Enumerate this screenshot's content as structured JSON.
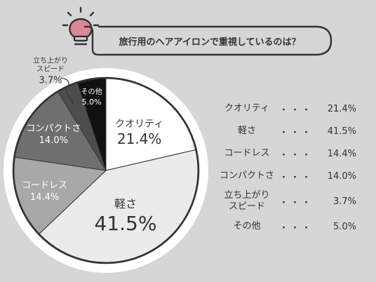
{
  "colors": {
    "background": "#d6d6d6",
    "ink": "#333333",
    "bulb_accent": "#d98a96"
  },
  "header": {
    "icon": "lightbulb-icon",
    "question": "旅行用のヘアアイロンで重視しているのは？"
  },
  "chart_data": {
    "type": "pie",
    "categories": [
      "クオリティ",
      "軽さ",
      "コードレス",
      "コンパクトさ",
      "立ち上がり\nスピード",
      "その他"
    ],
    "values": [
      21.4,
      41.5,
      14.4,
      14.0,
      3.7,
      5.0
    ],
    "value_labels": [
      "21.4%",
      "41.5%",
      "14.4%",
      "14.0%",
      "3.7%",
      "5.0%"
    ],
    "colors": [
      "#ffffff",
      "#ebebeb",
      "#a8a8a8",
      "#6f6f6f",
      "#4d4d4d",
      "#111111"
    ],
    "label_colors": [
      "#333333",
      "#333333",
      "#ffffff",
      "#ffffff",
      "#333333",
      "#ffffff"
    ],
    "start": "top, clockwise",
    "title": "",
    "legend": "right"
  },
  "table": {
    "dots": "・・・",
    "rows": [
      {
        "label": "クオリティ",
        "value": "21.4%"
      },
      {
        "label": "軽さ",
        "value": "41.5%"
      },
      {
        "label": "コードレス",
        "value": "14.4%"
      },
      {
        "label": "コンパクトさ",
        "value": "14.0%"
      },
      {
        "label": "立ち上がり\nスピード",
        "value": "3.7%"
      },
      {
        "label": "その他",
        "value": "5.0%"
      }
    ]
  }
}
